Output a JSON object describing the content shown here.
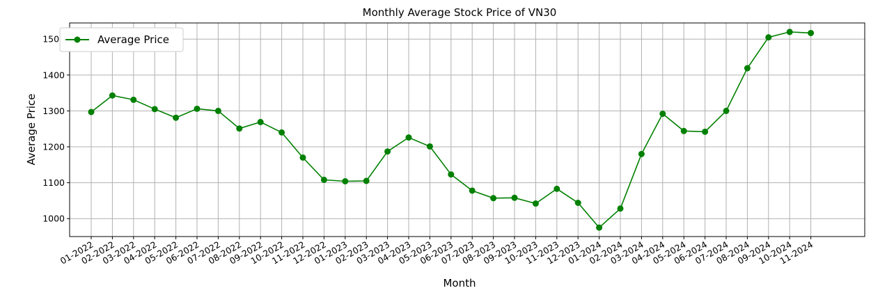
{
  "chart_data": {
    "type": "line",
    "title": "Monthly Average Stock Price of VN30",
    "xlabel": "Month",
    "ylabel": "Average Price",
    "ylim": [
      950,
      1545
    ],
    "yticks": [
      1000,
      1100,
      1200,
      1300,
      1400,
      1500
    ],
    "grid": true,
    "legend_position": "top-left",
    "categories": [
      "01-2022",
      "02-2022",
      "03-2022",
      "04-2022",
      "05-2022",
      "06-2022",
      "07-2022",
      "08-2022",
      "09-2022",
      "10-2022",
      "11-2022",
      "12-2022",
      "01-2023",
      "02-2023",
      "03-2023",
      "04-2023",
      "05-2023",
      "06-2023",
      "07-2023",
      "08-2023",
      "09-2023",
      "10-2023",
      "11-2023",
      "12-2023",
      "01-2024",
      "02-2024",
      "03-2024",
      "04-2024",
      "05-2024",
      "06-2024",
      "07-2024",
      "08-2024",
      "09-2024",
      "10-2024",
      "11-2024"
    ],
    "series": [
      {
        "name": "Average Price",
        "color": "#008000",
        "values": [
          1297,
          1343,
          1331,
          1305,
          1281,
          1306,
          1300,
          1251,
          1269,
          1240,
          1170,
          1108,
          1104,
          1105,
          1187,
          1226,
          1201,
          1123,
          1078,
          1057,
          1058,
          1042,
          1083,
          1044,
          975,
          1028,
          1180,
          1292,
          1244,
          1242,
          1300,
          1419,
          1505,
          1520,
          1517
        ]
      }
    ]
  }
}
